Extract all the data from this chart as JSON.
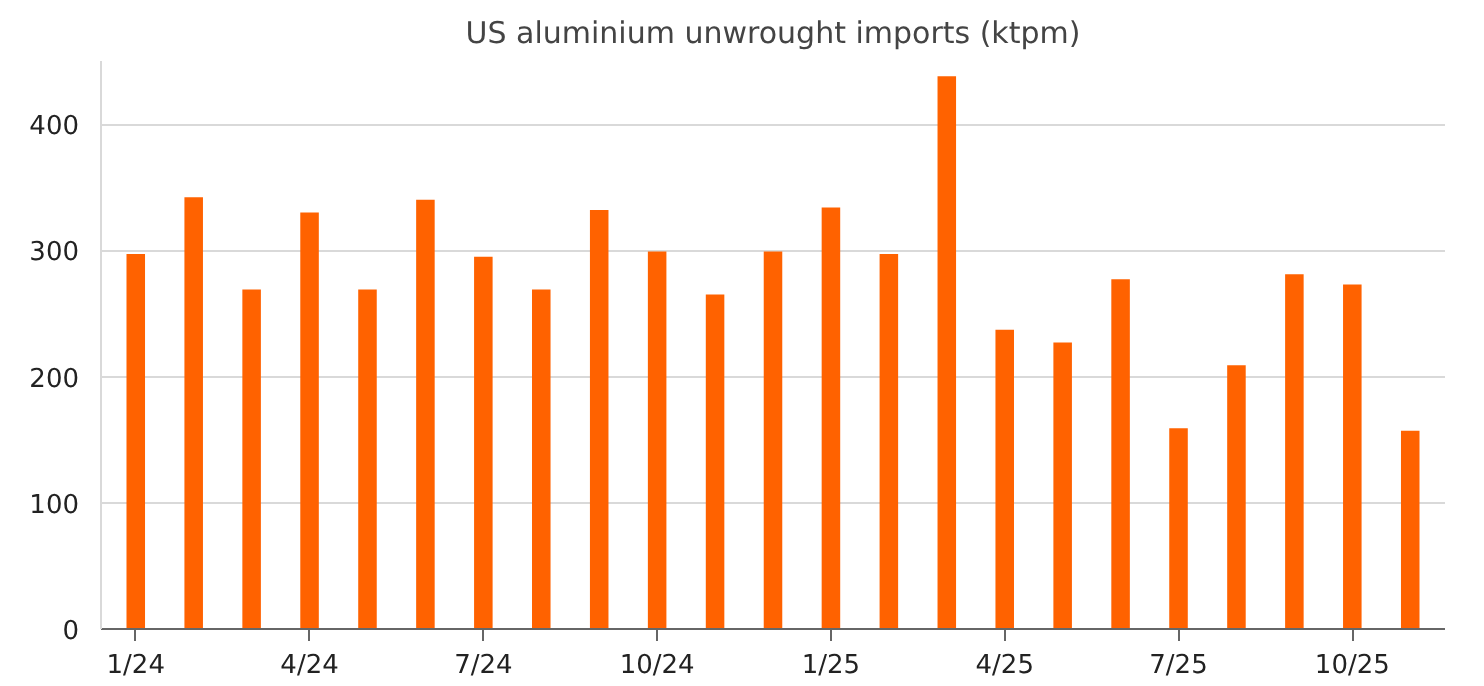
{
  "chart_data": {
    "type": "bar",
    "title": "US aluminium unwrought imports (ktpm)",
    "categories": [
      "1/24",
      null,
      null,
      "4/24",
      null,
      null,
      "7/24",
      null,
      null,
      "10/24",
      null,
      null,
      "1/25",
      null,
      null,
      "4/25",
      null,
      null,
      "7/25",
      null,
      null,
      "10/25",
      null
    ],
    "values": [
      297,
      342,
      269,
      330,
      269,
      340,
      295,
      269,
      332,
      299,
      265,
      299,
      334,
      297,
      438,
      237,
      227,
      277,
      159,
      209,
      281,
      273,
      157
    ],
    "color": "#ff6200",
    "ylim": [
      0,
      450
    ],
    "yticks": [
      0,
      100,
      200,
      300,
      400
    ],
    "grid": "y"
  }
}
